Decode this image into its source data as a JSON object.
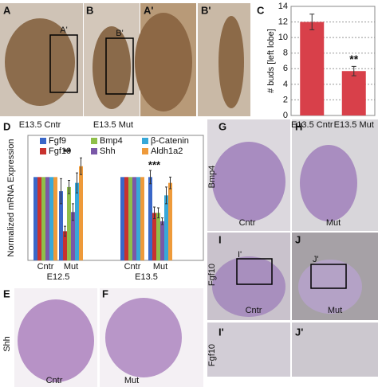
{
  "images": [
    {
      "label": "A",
      "caption": "E13.5 Cntr",
      "box": "A'"
    },
    {
      "label": "B",
      "caption": "E13.5 Mut",
      "box": "B'"
    },
    {
      "label": "A'"
    },
    {
      "label": "B'"
    },
    {
      "label": "E",
      "side": "Shh",
      "caption": "Cntr"
    },
    {
      "label": "F",
      "caption": "Mut"
    },
    {
      "label": "G",
      "side": "Bmp4",
      "caption": "Cntr"
    },
    {
      "label": "H",
      "caption": "Mut"
    },
    {
      "label": "I",
      "side": "Fgf10",
      "caption": "Cntr",
      "box": "I'"
    },
    {
      "label": "J",
      "caption": "Mut",
      "box": "J'"
    },
    {
      "label": "I'",
      "side": "Fgf10"
    },
    {
      "label": "J'"
    }
  ],
  "chart_data": [
    {
      "type": "bar",
      "label": "C",
      "ylabel": "# buds [left lobe]",
      "categories": [
        "E13.5 Cntr",
        "E13.5 Mut"
      ],
      "values": [
        12,
        5.7
      ],
      "errors": [
        1,
        0.6
      ],
      "significance": [
        null,
        "**"
      ],
      "color": "#d8404a",
      "ylim": [
        0,
        14
      ],
      "yticks": [
        0,
        2,
        4,
        6,
        8,
        10,
        12,
        14
      ],
      "grid": true
    },
    {
      "type": "grouped_bar",
      "label": "D",
      "ylabel": "Normalized mRNA Expression",
      "categories": [
        "Cntr",
        "Mut",
        "Cntr",
        "Mut"
      ],
      "groups": [
        "E12.5",
        "E13.5"
      ],
      "ylim": [
        0,
        1.5
      ],
      "series": [
        {
          "name": "Fgf9",
          "color": "#3a67c8",
          "values": [
            1,
            0.83,
            1,
            1.0
          ],
          "errors": [
            0,
            0.15,
            0,
            0.08
          ]
        },
        {
          "name": "Fgf10",
          "color": "#c8322e",
          "values": [
            1,
            0.35,
            1,
            0.57
          ],
          "errors": [
            0,
            0.06,
            0,
            0.07
          ],
          "significance": [
            null,
            "*",
            null,
            "***"
          ]
        },
        {
          "name": "Bmp4",
          "color": "#8fbf4a",
          "values": [
            1,
            0.88,
            1,
            0.57
          ],
          "errors": [
            0,
            0.08,
            0,
            0.06
          ],
          "significance": [
            null,
            "*",
            null,
            null
          ]
        },
        {
          "name": "Shh",
          "color": "#7a58a8",
          "values": [
            1,
            0.58,
            1,
            0.47
          ],
          "errors": [
            0,
            0.1,
            0,
            0.04
          ]
        },
        {
          "name": "β-Catenin",
          "color": "#38a8d8",
          "values": [
            1,
            0.93,
            1,
            0.78
          ],
          "errors": [
            0,
            0.12,
            0,
            0.1
          ]
        },
        {
          "name": "Aldh1a2",
          "color": "#ee9a3a",
          "values": [
            1,
            1.13,
            1,
            0.93
          ],
          "errors": [
            0,
            0.1,
            0,
            0.07
          ]
        }
      ]
    }
  ]
}
